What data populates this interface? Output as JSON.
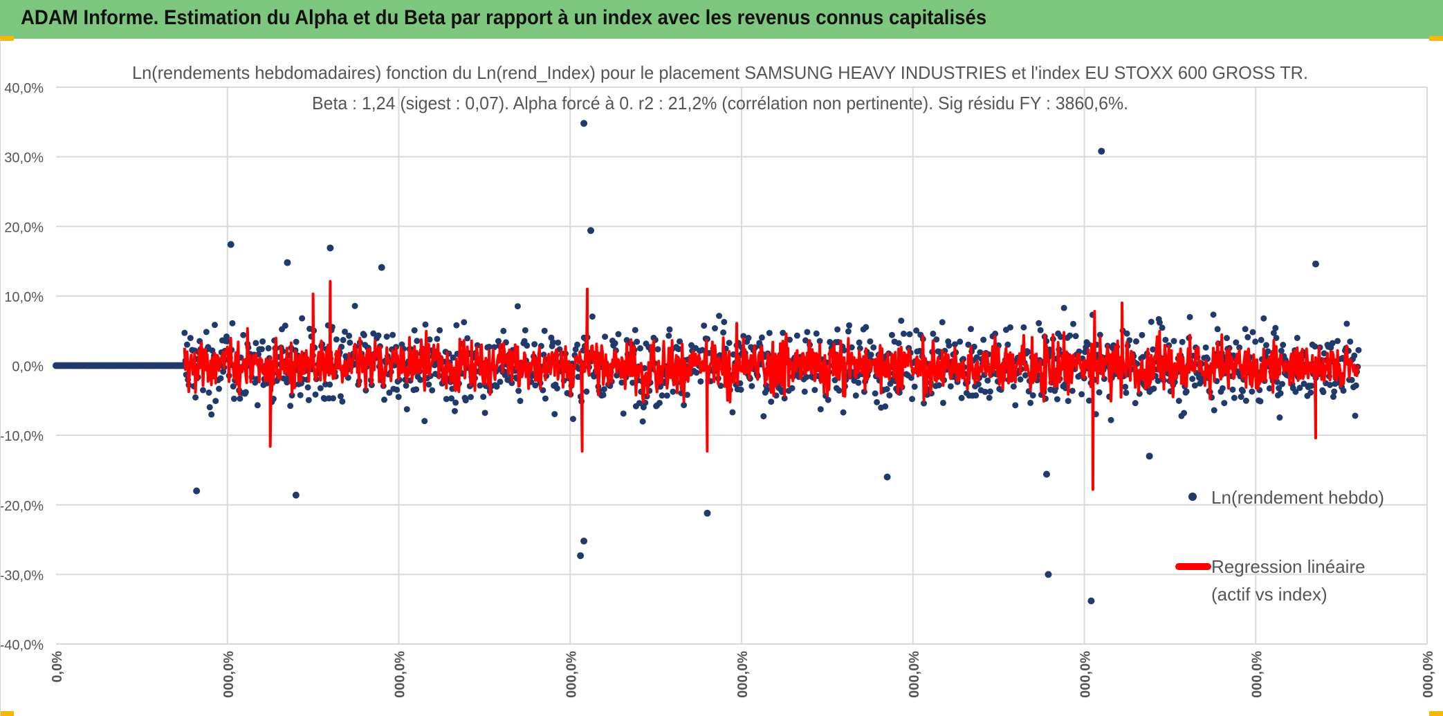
{
  "header": {
    "title": "ADAM Informe. Estimation du Alpha et du Beta par rapport à un index avec les revenus connus capitalisés"
  },
  "colors": {
    "banner": "#7dc67d",
    "scatter": "#1f3a6b",
    "regression": "#ff0000",
    "accent": "#f5b800"
  },
  "chart_data": {
    "type": "scatter",
    "title_line1": "Ln(rendements hebdomadaires) fonction du Ln(rend_Index) pour le placement SAMSUNG HEAVY INDUSTRIES  et l'index EU STOXX 600 GROSS TR.",
    "title_line2": "Beta : 1,24 (sigest : 0,07). Alpha forcé à 0. r2 : 21,2% (corrélation non pertinente). Sig résidu FY : 3860,6%.",
    "y_ticks": [
      "40,0%",
      "30,0%",
      "20,0%",
      "10,0%",
      "0,0%",
      "-10,0%",
      "-20,0%",
      "-30,0%",
      "-40,0%"
    ],
    "x_ticks": [
      "0,0%",
      "000,0%",
      "000,0%",
      "000,0%",
      "000,0%",
      "000,0%",
      "000,0%",
      "000,0%",
      "000,0%"
    ],
    "ylim": [
      -40,
      40
    ],
    "xlim": [
      0,
      8
    ],
    "grid": true,
    "legend": [
      {
        "label": "Ln(rendement hebdo)",
        "kind": "marker"
      },
      {
        "label": "Regression linéaire",
        "label2": "(actif vs index)",
        "kind": "line"
      }
    ],
    "series": [
      {
        "name": "Ln(rendement hebdo)",
        "kind": "scatter",
        "n_points": 1400,
        "x_range": [
          0,
          7.6
        ],
        "zero_until": 0.75
      },
      {
        "name": "Regression linéaire",
        "kind": "line",
        "x_range": [
          0.75,
          7.6
        ]
      }
    ],
    "outliers": [
      {
        "x": 3.08,
        "y": 34.8
      },
      {
        "x": 6.1,
        "y": 30.8
      },
      {
        "x": 3.12,
        "y": 19.4
      },
      {
        "x": 1.02,
        "y": 17.4
      },
      {
        "x": 1.6,
        "y": 16.9
      },
      {
        "x": 7.35,
        "y": 14.6
      },
      {
        "x": 1.35,
        "y": 14.8
      },
      {
        "x": 1.9,
        "y": 14.1
      },
      {
        "x": 5.79,
        "y": -30.0
      },
      {
        "x": 6.04,
        "y": -33.8
      },
      {
        "x": 3.06,
        "y": -27.3
      },
      {
        "x": 3.08,
        "y": -25.2
      },
      {
        "x": 3.8,
        "y": -21.2
      },
      {
        "x": 1.4,
        "y": -18.6
      },
      {
        "x": 0.82,
        "y": -18.0
      },
      {
        "x": 5.78,
        "y": -15.6
      },
      {
        "x": 4.85,
        "y": -16.0
      },
      {
        "x": 6.38,
        "y": -13.0
      }
    ],
    "spikes": [
      {
        "x": 6.05,
        "y": -17.8
      },
      {
        "x": 3.07,
        "y": -12.3
      },
      {
        "x": 1.25,
        "y": -11.6
      },
      {
        "x": 3.8,
        "y": -12.3
      },
      {
        "x": 7.35,
        "y": -10.4
      },
      {
        "x": 1.6,
        "y": 12.1
      },
      {
        "x": 1.5,
        "y": 10.3
      },
      {
        "x": 6.22,
        "y": 9.0
      },
      {
        "x": 6.06,
        "y": 7.8
      },
      {
        "x": 3.1,
        "y": 11.0
      }
    ]
  }
}
